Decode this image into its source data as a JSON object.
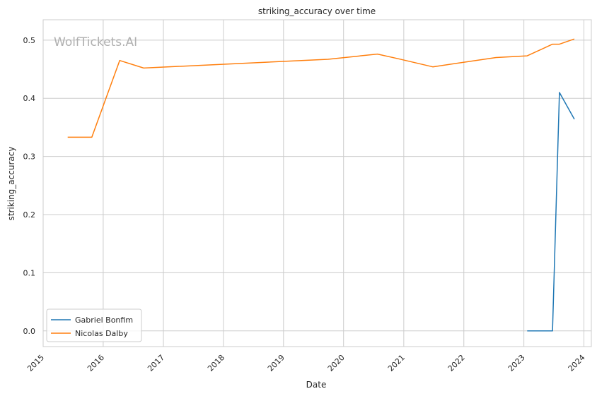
{
  "chart_data": {
    "type": "line",
    "title": "striking_accuracy over time",
    "xlabel": "Date",
    "ylabel": "striking_accuracy",
    "watermark": "WolfTickets.AI",
    "x_ticks": [
      "2015",
      "2016",
      "2017",
      "2018",
      "2019",
      "2020",
      "2021",
      "2022",
      "2023",
      "2024"
    ],
    "y_ticks": [
      "0.0",
      "0.1",
      "0.2",
      "0.3",
      "0.4",
      "0.5"
    ],
    "xlim": [
      "2015-01-01",
      "2024-02-15"
    ],
    "ylim": [
      -0.027,
      0.535
    ],
    "grid": true,
    "legend_position": "lower-left",
    "series": [
      {
        "name": "Gabriel Bonfim",
        "color": "#1f77b4",
        "points": [
          [
            "2023-01-21",
            0.0
          ],
          [
            "2023-06-24",
            0.0
          ],
          [
            "2023-08-05",
            0.41
          ],
          [
            "2023-11-04",
            0.364
          ]
        ]
      },
      {
        "name": "Nicolas Dalby",
        "color": "#ff7f0e",
        "points": [
          [
            "2015-05-30",
            0.333
          ],
          [
            "2015-10-24",
            0.333
          ],
          [
            "2016-04-10",
            0.465
          ],
          [
            "2016-09-03",
            0.452
          ],
          [
            "2019-09-28",
            0.467
          ],
          [
            "2020-07-25",
            0.476
          ],
          [
            "2020-11-28",
            0.468
          ],
          [
            "2021-06-26",
            0.454
          ],
          [
            "2022-07-16",
            0.47
          ],
          [
            "2023-01-21",
            0.473
          ],
          [
            "2023-06-24",
            0.493
          ],
          [
            "2023-08-05",
            0.493
          ],
          [
            "2023-11-04",
            0.502
          ]
        ]
      }
    ]
  }
}
